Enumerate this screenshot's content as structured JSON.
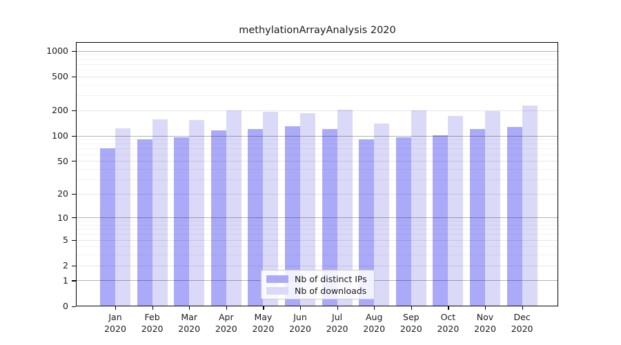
{
  "chart_data": {
    "type": "bar",
    "title": "methylationArrayAnalysis 2020",
    "xlabel": "",
    "ylabel": "",
    "categories": [
      "Jan",
      "Feb",
      "Mar",
      "Apr",
      "May",
      "Jun",
      "Jul",
      "Aug",
      "Sep",
      "Oct",
      "Nov",
      "Dec"
    ],
    "x_year_label": "2020",
    "series": [
      {
        "name": "Nb of distinct IPs",
        "color": "#aaaaf8",
        "values": [
          71,
          91,
          96,
          115,
          120,
          128,
          119,
          90,
          95,
          102,
          120,
          126
        ]
      },
      {
        "name": "Nb of downloads",
        "color": "#dadaf8",
        "values": [
          123,
          155,
          153,
          200,
          193,
          185,
          201,
          139,
          198,
          171,
          197,
          225
        ]
      }
    ],
    "y_scale": "log1p",
    "ylim": [
      0,
      1270
    ],
    "y_ticks": [
      1000,
      500,
      200,
      100,
      50,
      20,
      10,
      5,
      2,
      1,
      0
    ],
    "y_minor_ticks": [
      3,
      4,
      6,
      7,
      8,
      9,
      30,
      40,
      60,
      70,
      80,
      90,
      300,
      400,
      600,
      700,
      800,
      900
    ],
    "y_emphasized_ticks": [
      1,
      10,
      100,
      1000
    ],
    "grid": true,
    "legend_position": "lower center"
  },
  "colors": {
    "background": "#ffffff",
    "spine": "#000000",
    "grid_strong": "rgba(0,0,0,0.30)",
    "grid_major": "rgba(0,0,0,0.10)",
    "grid_minor": "rgba(0,0,0,0.05)"
  }
}
